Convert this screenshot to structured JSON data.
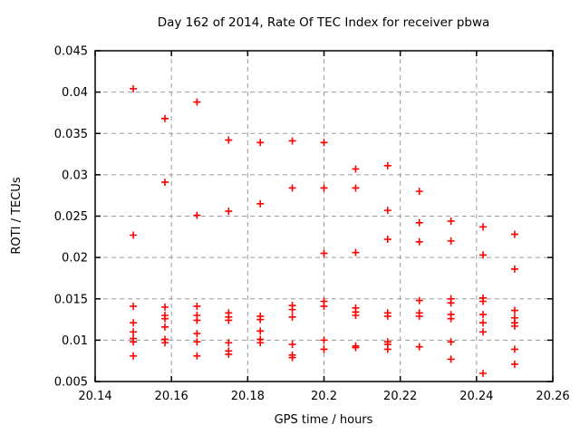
{
  "colors": {
    "point": "#ff0000",
    "grid": "#9b9b9b",
    "border": "#000000",
    "text": "#000000",
    "background": "#ffffff"
  },
  "chart_data": {
    "type": "scatter",
    "marker": "plus",
    "title": "Day 162 of 2014, Rate Of TEC Index for receiver pbwa",
    "xlabel": "GPS time / hours",
    "ylabel": "ROTI / TECUs",
    "xlim": [
      20.14,
      20.26
    ],
    "ylim": [
      0.005,
      0.045
    ],
    "grid": true,
    "legend": false,
    "x_ticks": [
      20.14,
      20.16,
      20.18,
      20.2,
      20.22,
      20.24,
      20.26
    ],
    "x_tick_labels": [
      "20.14",
      "20.16",
      "20.18",
      "20.2",
      "20.22",
      "20.24",
      "20.26"
    ],
    "y_ticks": [
      0.005,
      0.01,
      0.015,
      0.02,
      0.025,
      0.03,
      0.035,
      0.04,
      0.045
    ],
    "y_tick_labels": [
      "0.005",
      "0.01",
      "0.015",
      "0.02",
      "0.025",
      "0.03",
      "0.035",
      "0.04",
      "0.045"
    ],
    "points": [
      [
        20.15,
        0.0404
      ],
      [
        20.15,
        0.0227
      ],
      [
        20.15,
        0.0141
      ],
      [
        20.15,
        0.0121
      ],
      [
        20.15,
        0.011
      ],
      [
        20.15,
        0.0102
      ],
      [
        20.15,
        0.0098
      ],
      [
        20.15,
        0.0081
      ],
      [
        20.1583,
        0.0368
      ],
      [
        20.1583,
        0.0291
      ],
      [
        20.1583,
        0.014
      ],
      [
        20.1583,
        0.013
      ],
      [
        20.1583,
        0.0126
      ],
      [
        20.1583,
        0.0116
      ],
      [
        20.1583,
        0.0101
      ],
      [
        20.1583,
        0.0097
      ],
      [
        20.1667,
        0.0388
      ],
      [
        20.1667,
        0.0251
      ],
      [
        20.1667,
        0.0141
      ],
      [
        20.1667,
        0.013
      ],
      [
        20.1667,
        0.0124
      ],
      [
        20.1667,
        0.0108
      ],
      [
        20.1667,
        0.0098
      ],
      [
        20.1667,
        0.0081
      ],
      [
        20.175,
        0.0342
      ],
      [
        20.175,
        0.0256
      ],
      [
        20.175,
        0.0133
      ],
      [
        20.175,
        0.0128
      ],
      [
        20.175,
        0.0124
      ],
      [
        20.175,
        0.0097
      ],
      [
        20.175,
        0.0087
      ],
      [
        20.175,
        0.0083
      ],
      [
        20.1833,
        0.0339
      ],
      [
        20.1833,
        0.0265
      ],
      [
        20.1833,
        0.0129
      ],
      [
        20.1833,
        0.0125
      ],
      [
        20.1833,
        0.0111
      ],
      [
        20.1833,
        0.0101
      ],
      [
        20.1833,
        0.0097
      ],
      [
        20.1917,
        0.0341
      ],
      [
        20.1917,
        0.0284
      ],
      [
        20.1917,
        0.0142
      ],
      [
        20.1917,
        0.0137
      ],
      [
        20.1917,
        0.0128
      ],
      [
        20.1917,
        0.0095
      ],
      [
        20.1917,
        0.0082
      ],
      [
        20.1917,
        0.0079
      ],
      [
        20.2,
        0.0339
      ],
      [
        20.2,
        0.0284
      ],
      [
        20.2,
        0.0205
      ],
      [
        20.2,
        0.0147
      ],
      [
        20.2,
        0.0141
      ],
      [
        20.2,
        0.01
      ],
      [
        20.2,
        0.0089
      ],
      [
        20.2083,
        0.0307
      ],
      [
        20.2083,
        0.0284
      ],
      [
        20.2083,
        0.0206
      ],
      [
        20.2083,
        0.0139
      ],
      [
        20.2083,
        0.0134
      ],
      [
        20.2083,
        0.013
      ],
      [
        20.2083,
        0.0093
      ],
      [
        20.2083,
        0.0091
      ],
      [
        20.2167,
        0.0311
      ],
      [
        20.2167,
        0.0257
      ],
      [
        20.2167,
        0.0222
      ],
      [
        20.2167,
        0.0133
      ],
      [
        20.2167,
        0.0129
      ],
      [
        20.2167,
        0.0098
      ],
      [
        20.2167,
        0.0095
      ],
      [
        20.2167,
        0.0089
      ],
      [
        20.225,
        0.028
      ],
      [
        20.225,
        0.0242
      ],
      [
        20.225,
        0.0219
      ],
      [
        20.225,
        0.0148
      ],
      [
        20.225,
        0.0133
      ],
      [
        20.225,
        0.0129
      ],
      [
        20.225,
        0.0092
      ],
      [
        20.2333,
        0.0244
      ],
      [
        20.2333,
        0.022
      ],
      [
        20.2333,
        0.015
      ],
      [
        20.2333,
        0.0145
      ],
      [
        20.2333,
        0.0131
      ],
      [
        20.2333,
        0.0126
      ],
      [
        20.2333,
        0.0098
      ],
      [
        20.2333,
        0.0077
      ],
      [
        20.2417,
        0.0237
      ],
      [
        20.2417,
        0.0203
      ],
      [
        20.2417,
        0.0151
      ],
      [
        20.2417,
        0.0147
      ],
      [
        20.2417,
        0.0131
      ],
      [
        20.2417,
        0.0121
      ],
      [
        20.2417,
        0.011
      ],
      [
        20.2417,
        0.006
      ],
      [
        20.25,
        0.0228
      ],
      [
        20.25,
        0.0186
      ],
      [
        20.25,
        0.0136
      ],
      [
        20.25,
        0.0127
      ],
      [
        20.25,
        0.0121
      ],
      [
        20.25,
        0.0117
      ],
      [
        20.25,
        0.0089
      ],
      [
        20.25,
        0.0071
      ]
    ]
  }
}
